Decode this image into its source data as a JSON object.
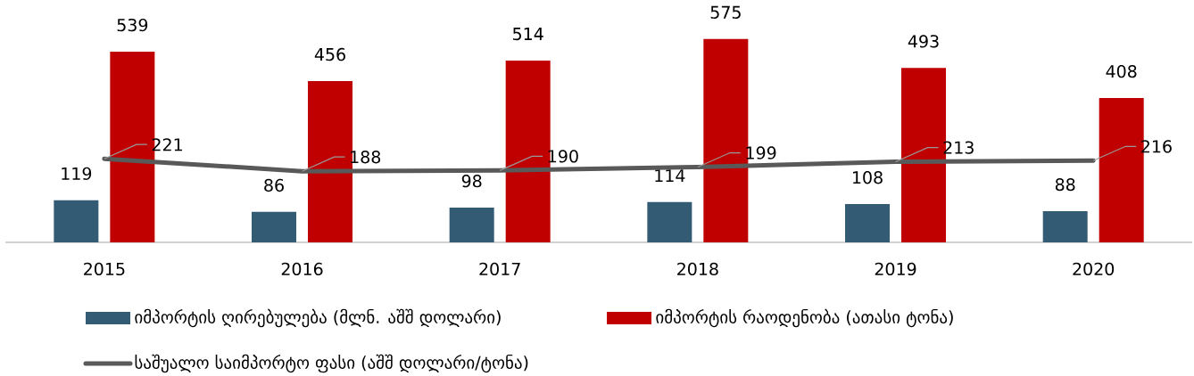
{
  "chart_data": {
    "type": "bar",
    "categories": [
      "2015",
      "2016",
      "2017",
      "2018",
      "2019",
      "2020"
    ],
    "series": [
      {
        "name": "იმპორტის ღირებულება (მლნ. აშშ დოლარი)",
        "color": "#335b74",
        "values": [
          119,
          86,
          98,
          114,
          108,
          88
        ]
      },
      {
        "name": "იმპორტის რაოდენობა (ათასი ტონა)",
        "color": "#c00000",
        "values": [
          539,
          456,
          514,
          575,
          493,
          408
        ]
      },
      {
        "name": "საშუალო საიმპორტო ფასი (აშშ დოლარი/ტონა)",
        "type": "line",
        "axis": "y2",
        "color": "#595959",
        "values": [
          221,
          188,
          190,
          199,
          213,
          216
        ]
      }
    ],
    "data_labels": true,
    "legend": "bottom",
    "tick_labels": "x"
  }
}
